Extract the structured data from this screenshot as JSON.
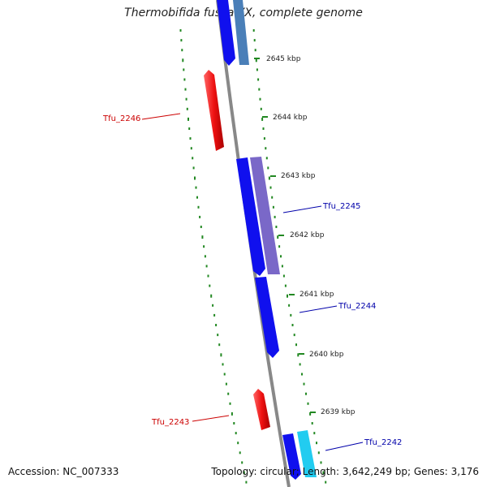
{
  "title": "Thermobifida fusca YX, complete genome",
  "footer": {
    "accession": "Accession: NC_007333",
    "summary": "Topology: circular; Length: 3,642,249 bp; Genes: 3,176"
  },
  "scale_ticks": [
    "2645 kbp",
    "2644 kbp",
    "2643 kbp",
    "2642 kbp",
    "2641 kbp",
    "2640 kbp",
    "2639 kbp"
  ],
  "genes": {
    "forward": [
      {
        "name": "",
        "color": "#1010ee",
        "segment": 0
      },
      {
        "name": "",
        "color": "#4a7fb8",
        "segment": 1
      },
      {
        "name": "Tfu_2245",
        "color": "#1010ee",
        "segment": 2
      },
      {
        "name": "",
        "color": "#7a68c8",
        "segment": 3
      },
      {
        "name": "Tfu_2244",
        "color": "#1010ee",
        "segment": 4
      },
      {
        "name": "Tfu_2242",
        "color": "#1010ee",
        "segment": 5
      },
      {
        "name": "",
        "color": "#22ccf0",
        "segment": 6
      }
    ],
    "reverse": [
      {
        "name": "Tfu_2246",
        "color": "#ee1111",
        "segment": 0
      },
      {
        "name": "Tfu_2243",
        "color": "#ee1111",
        "segment": 1
      }
    ]
  },
  "colors": {
    "forward_label": "#0000aa",
    "reverse_label": "#cc0000",
    "axis": "#888888",
    "dots": "#228822"
  }
}
